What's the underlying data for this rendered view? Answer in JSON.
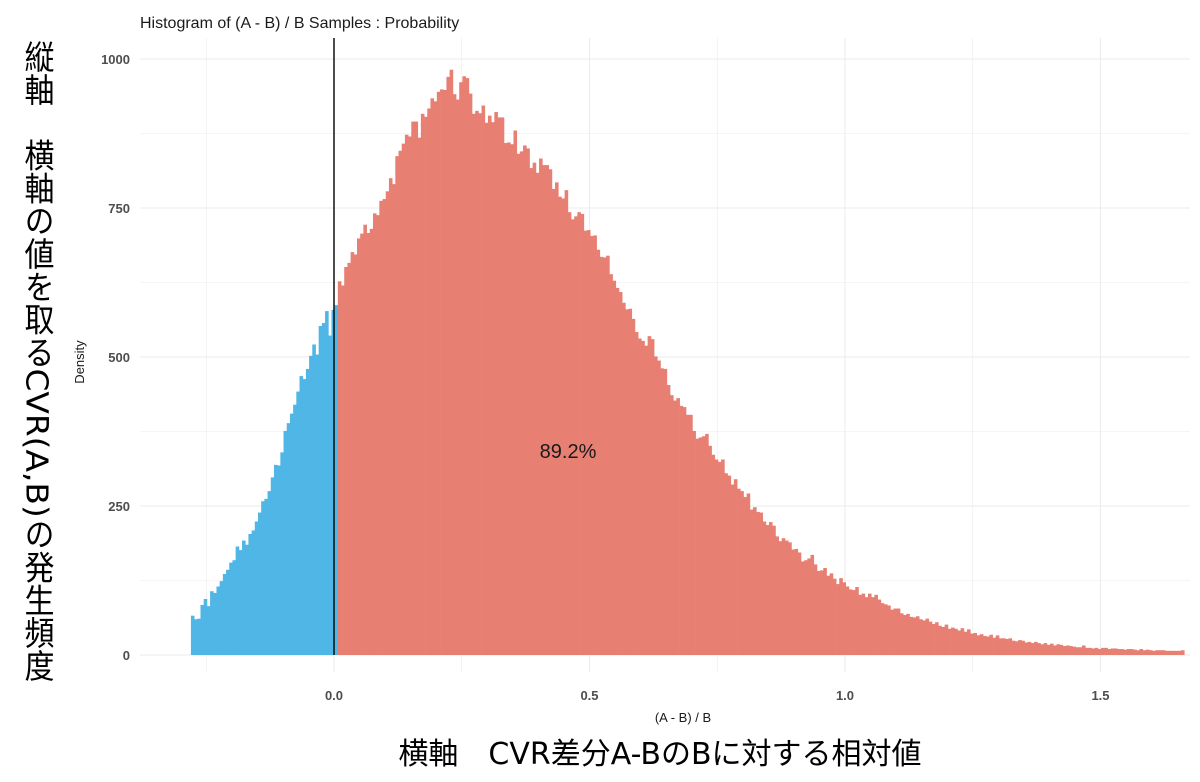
{
  "chart_data": {
    "type": "bar",
    "title": "Histogram of (A - B) / B Samples : Probability",
    "xlabel": "(A - B) / B",
    "ylabel": "Density",
    "annotation": "89.2%",
    "caption_y": "縦軸　横軸の値を取るCVR(A,B)の発生頻度",
    "caption_x": "横軸　CVR差分A-BのBに対する相対値",
    "xlim": [
      -0.35,
      1.65
    ],
    "ylim": [
      0,
      1000
    ],
    "grid": true,
    "x_ticks": [
      0.0,
      0.5,
      1.0,
      1.5
    ],
    "x_tick_labels": [
      "0.0",
      "0.5",
      "1.0",
      "1.5"
    ],
    "y_ticks": [
      0,
      250,
      500,
      750,
      1000
    ],
    "y_tick_labels": [
      "0",
      "250",
      "500",
      "750",
      "1000"
    ],
    "reference_line_x": 0.0,
    "bin_width": 0.00625,
    "bins_start": -0.28,
    "colors": {
      "negative": "#4fb6e6",
      "positive": "#e87f73",
      "refline": "#000000",
      "grid": "#ebebeb"
    },
    "series": [
      {
        "name": "x < 0",
        "x_range": [
          -0.28,
          0.0
        ],
        "values": [
          66,
          60,
          61,
          84,
          94,
          82,
          107,
          104,
          115,
          124,
          136,
          143,
          155,
          159,
          182,
          176,
          192,
          185,
          203,
          209,
          224,
          239,
          258,
          262,
          275,
          298,
          319,
          318,
          340,
          376,
          389,
          405,
          420,
          442,
          468,
          463,
          480,
          502,
          521,
          504,
          552,
          557,
          577,
          536,
          579,
          587
        ]
      },
      {
        "name": "x > 0",
        "x_range": [
          0.0,
          1.6525
        ],
        "values": [
          627,
          620,
          651,
          658,
          676,
          672,
          699,
          707,
          722,
          708,
          715,
          741,
          738,
          762,
          765,
          778,
          800,
          790,
          837,
          846,
          858,
          873,
          870,
          895,
          895,
          868,
          908,
          903,
          917,
          934,
          929,
          945,
          949,
          948,
          970,
          982,
          941,
          932,
          961,
          971,
          968,
          942,
          908,
          913,
          909,
          922,
          893,
          905,
          894,
          911,
          902,
          902,
          859,
          860,
          857,
          880,
          841,
          845,
          855,
          850,
          817,
          826,
          809,
          833,
          822,
          822,
          815,
          782,
          793,
          769,
          766,
          780,
          743,
          731,
          736,
          743,
          740,
          712,
          713,
          703,
          704,
          680,
          668,
          667,
          670,
          639,
          628,
          616,
          609,
          591,
          580,
          581,
          564,
          542,
          531,
          527,
          519,
          535,
          530,
          501,
          494,
          481,
          480,
          453,
          436,
          427,
          431,
          418,
          416,
          403,
          403,
          376,
          363,
          365,
          367,
          371,
          351,
          336,
          328,
          324,
          328,
          305,
          301,
          286,
          295,
          279,
          275,
          265,
          271,
          244,
          248,
          240,
          239,
          224,
          218,
          223,
          217,
          199,
          191,
          196,
          192,
          189,
          177,
          178,
          172,
          157,
          159,
          162,
          168,
          152,
          141,
          142,
          146,
          133,
          137,
          128,
          119,
          129,
          122,
          115,
          110,
          109,
          114,
          101,
          103,
          97,
          103,
          97,
          101,
          93,
          87,
          85,
          83,
          76,
          78,
          78,
          70,
          67,
          69,
          64,
          63,
          65,
          60,
          58,
          61,
          56,
          52,
          55,
          49,
          47,
          51,
          44,
          46,
          44,
          41,
          45,
          39,
          43,
          36,
          37,
          33,
          35,
          32,
          31,
          34,
          29,
          33,
          28,
          28,
          27,
          28,
          24,
          23,
          25,
          24,
          21,
          22,
          20,
          22,
          20,
          18,
          20,
          17,
          19,
          16,
          18,
          17,
          15,
          16,
          15,
          14,
          13,
          13,
          16,
          12,
          12,
          11,
          12,
          10,
          12,
          12,
          10,
          11,
          11,
          10,
          10,
          9,
          10,
          10,
          9,
          8,
          10,
          8,
          9,
          8,
          7,
          8,
          8,
          8,
          7,
          7,
          7,
          7,
          7,
          8
        ]
      }
    ]
  }
}
